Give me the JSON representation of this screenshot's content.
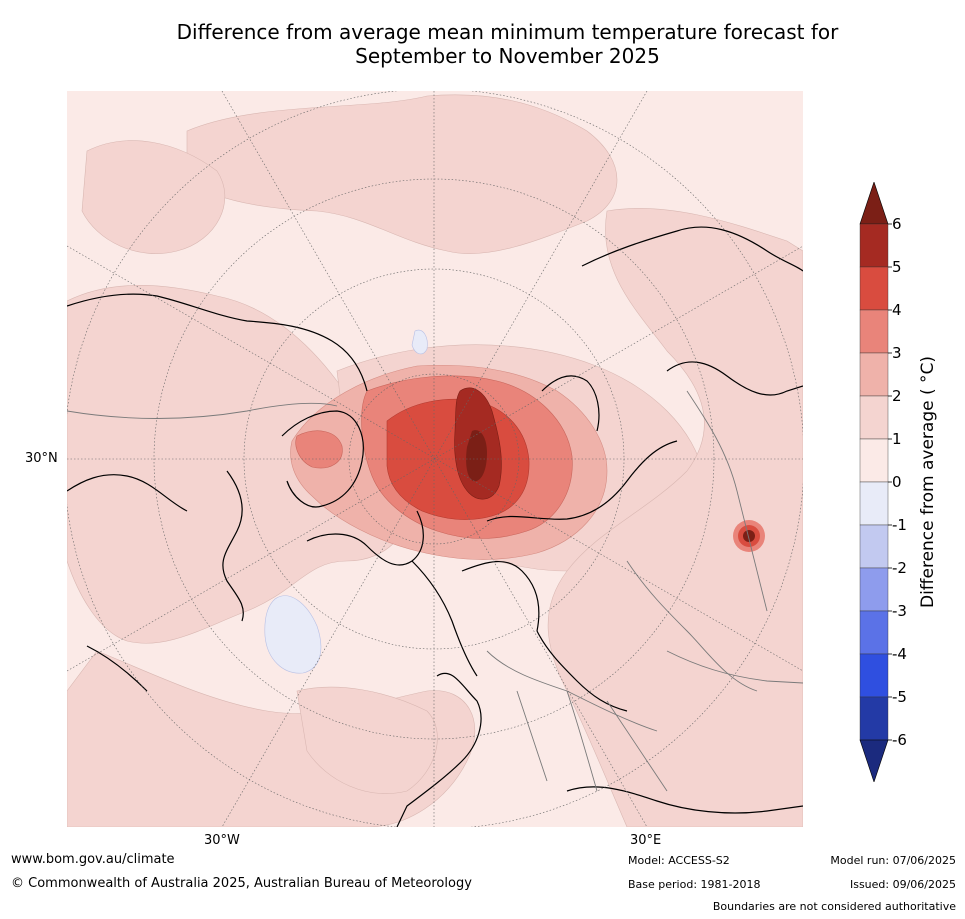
{
  "title_line1": "Difference from average mean minimum temperature forecast for",
  "title_line2": "September to November 2025",
  "map_labels": {
    "lat_30n": "30°N",
    "lon_30w": "30°W",
    "lon_30e": "30°E"
  },
  "colorbar": {
    "title": "Difference from average ( °C)",
    "ticks": [
      "6",
      "5",
      "4",
      "3",
      "2",
      "1",
      "0",
      "-1",
      "-2",
      "-3",
      "-4",
      "-5",
      "-6"
    ],
    "colors": {
      "above_6": "#7b1f16",
      "5_6": "#a52a22",
      "4_5": "#d94c3f",
      "3_4": "#e9847a",
      "2_3": "#efb2aa",
      "1_2": "#f4d4d0",
      "0_1": "#fbeae7",
      "m1_0": "#e8ebf8",
      "m2_m1": "#c2c9f0",
      "m3_m2": "#8e9ced",
      "m4_m3": "#5b72e7",
      "m5_m4": "#2f4fe0",
      "m6_m5": "#233aa6",
      "below_m6": "#1b2a7e"
    }
  },
  "footer": {
    "website": "www.bom.gov.au/climate",
    "copyright": "© Commonwealth of Australia 2025, Australian Bureau of Meteorology",
    "model": "Model: ACCESS-S2",
    "base_period": "Base period: 1981-2018",
    "model_run": "Model run: 07/06/2025",
    "issued": "Issued: 09/06/2025",
    "disclaimer": "Boundaries are not considered authoritative"
  }
}
